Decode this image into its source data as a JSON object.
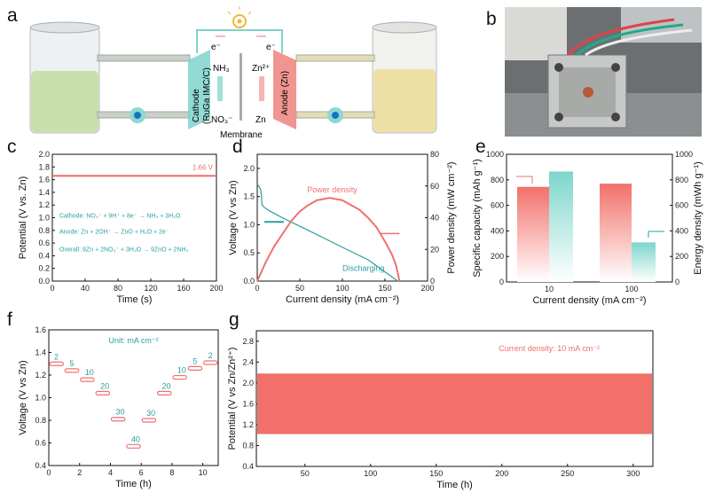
{
  "panel_letters": {
    "a": "a",
    "b": "b",
    "c": "c",
    "d": "d",
    "e": "e",
    "f": "f",
    "g": "g"
  },
  "schematic": {
    "cathode_label": "Cathode",
    "cathode_material": "(RuGa IMC/C)",
    "anode_label": "Anode (Zn)",
    "membrane_label": "Membrane",
    "nh3": "NH₃",
    "no3": "NO₃⁻",
    "zn2": "Zn²⁺",
    "zn": "Zn",
    "electron_left": "e⁻",
    "electron_right": "e⁻",
    "icon": "light-bulb-icon",
    "colors": {
      "cathode": "#7fd3cc",
      "anode": "#f08a85",
      "left_electrolyte": "#cfe3b0",
      "right_electrolyte": "#efe2a8"
    }
  },
  "photo": {
    "icon": "battery-device-photo"
  },
  "chart_data": [
    {
      "id": "c",
      "type": "line",
      "xlabel": "Time (s)",
      "ylabel": "Potential (V vs. Zn)",
      "xlim": [
        0,
        200
      ],
      "ylim": [
        0,
        2.0
      ],
      "xticks": [
        "0",
        "40",
        "80",
        "120",
        "160",
        "200"
      ],
      "yticks": [
        "0.0",
        "0.2",
        "0.4",
        "0.6",
        "0.8",
        "1.0",
        "1.2",
        "1.4",
        "1.6",
        "1.8",
        "2.0"
      ],
      "series": [
        {
          "x": [
            0,
            200
          ],
          "y": [
            1.66,
            1.66
          ],
          "color": "#f07070"
        }
      ],
      "annotations": {
        "value": "1.66 V",
        "cathode": "Cathode: NO₃⁻ + 9H⁺ + 8e⁻ → NH₃ + 3H₂O",
        "anode": "Anode: Zn + 2OH⁻ → ZnO + H₂O + 2e⁻",
        "overall": "Overall: 9Zn + 2NO₃⁻ + 3H₂O → 9ZnO + 2NH₃"
      }
    },
    {
      "id": "d",
      "type": "line",
      "xlabel": "Current density (mA cm⁻²)",
      "ylabel": "Voltage (V vs Zn)",
      "y2label": "Power density (mW cm⁻²)",
      "xlim": [
        0,
        200
      ],
      "ylim": [
        0,
        2.25
      ],
      "y2lim": [
        0,
        80
      ],
      "xticks": [
        "0",
        "50",
        "100",
        "150",
        "200"
      ],
      "yticks": [
        "0.0",
        "0.5",
        "1.0",
        "1.5",
        "2.0"
      ],
      "y2ticks": [
        "0",
        "20",
        "40",
        "60",
        "80"
      ],
      "series": [
        {
          "name": "Discharging",
          "axis": "left",
          "color": "#2a9fa0",
          "x": [
            0,
            2,
            4,
            5,
            5.5,
            8,
            15,
            30,
            60,
            100,
            130,
            165
          ],
          "y": [
            1.72,
            1.68,
            1.62,
            1.5,
            1.36,
            1.31,
            1.24,
            1.12,
            0.9,
            0.6,
            0.38,
            0.0
          ]
        },
        {
          "name": "Power density",
          "axis": "right",
          "color": "#f07070",
          "x": [
            0,
            10,
            20,
            30,
            40,
            50,
            60,
            70,
            85,
            100,
            110,
            120,
            130,
            140,
            150,
            158,
            163,
            167
          ],
          "y": [
            0,
            12,
            22,
            30,
            38,
            44,
            48,
            51,
            52.5,
            51,
            48,
            45,
            40,
            34,
            25,
            17,
            10,
            0
          ]
        }
      ]
    },
    {
      "id": "e",
      "type": "bar",
      "xlabel": "Current density (mA cm⁻²)",
      "ylabel": "Specific capacity (mAh g⁻¹)",
      "y2label": "Energy density (mWh g⁻¹)",
      "categories": [
        "10",
        "100"
      ],
      "ylim": [
        0,
        1000
      ],
      "y2lim": [
        0,
        1000
      ],
      "yticks": [
        "0",
        "200",
        "400",
        "600",
        "800",
        "1000"
      ],
      "y2ticks": [
        "0",
        "200",
        "400",
        "600",
        "800",
        "1000"
      ],
      "series": [
        {
          "name": "Specific capacity",
          "axis": "left",
          "color": "#f2706a",
          "values": [
            745,
            770
          ]
        },
        {
          "name": "Energy density",
          "axis": "right",
          "color": "#7dd6cc",
          "values": [
            865,
            310
          ]
        }
      ]
    },
    {
      "id": "f",
      "type": "scatter",
      "xlabel": "Time (h)",
      "ylabel": "Voltage (V vs Zn)",
      "xlim": [
        0,
        11
      ],
      "ylim": [
        0.4,
        1.6
      ],
      "xticks": [
        "0",
        "2",
        "4",
        "6",
        "8",
        "10"
      ],
      "yticks": [
        "0.4",
        "0.6",
        "0.8",
        "1.0",
        "1.2",
        "1.4",
        "1.6"
      ],
      "unit_note": "Unit: mA cm⁻²",
      "steps": [
        {
          "start": 0,
          "end": 1,
          "v": 1.3,
          "label": "2"
        },
        {
          "start": 1,
          "end": 2,
          "v": 1.24,
          "label": "5"
        },
        {
          "start": 2,
          "end": 3,
          "v": 1.16,
          "label": "10"
        },
        {
          "start": 3,
          "end": 4,
          "v": 1.04,
          "label": "20"
        },
        {
          "start": 4,
          "end": 5,
          "v": 0.81,
          "label": "30"
        },
        {
          "start": 5,
          "end": 6,
          "v": 0.57,
          "label": "40"
        },
        {
          "start": 6,
          "end": 7,
          "v": 0.8,
          "label": "30"
        },
        {
          "start": 7,
          "end": 8,
          "v": 1.04,
          "label": "20"
        },
        {
          "start": 8,
          "end": 9,
          "v": 1.18,
          "label": "10"
        },
        {
          "start": 9,
          "end": 10,
          "v": 1.26,
          "label": "5"
        },
        {
          "start": 10,
          "end": 11,
          "v": 1.31,
          "label": "2"
        }
      ],
      "color": "#f07070",
      "label_color": "#2a9fa0"
    },
    {
      "id": "g",
      "type": "area",
      "xlabel": "Time (h)",
      "ylabel": "Potential (V vs Zn/Zn²⁺)",
      "xlim": [
        13,
        315
      ],
      "ylim": [
        0.4,
        3.0
      ],
      "xticks": [
        "50",
        "100",
        "150",
        "200",
        "250",
        "300"
      ],
      "yticks": [
        "0.4",
        "0.8",
        "1.2",
        "1.6",
        "2.0",
        "2.4",
        "2.8"
      ],
      "band": {
        "x": [
          13,
          315
        ],
        "low": 1.02,
        "high": 2.18
      },
      "annotation": "Current density: 10 mA cm⁻²",
      "color": "#f2706a"
    }
  ]
}
